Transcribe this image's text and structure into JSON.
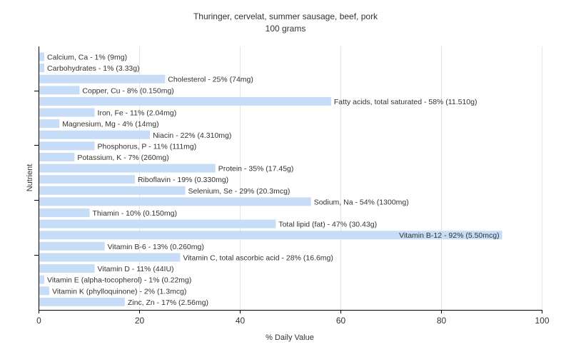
{
  "chart_data": {
    "type": "bar",
    "orientation": "horizontal",
    "title": "Thuringer, cervelat, summer sausage, beef, pork",
    "subtitle": "100 grams",
    "xlabel": "% Daily Value",
    "ylabel": "Nutrient",
    "xlim": [
      0,
      100
    ],
    "xticks": [
      0,
      20,
      40,
      60,
      80,
      100
    ],
    "grid": true,
    "bar_color": "#c6dcf7",
    "categories": [
      "Calcium, Ca",
      "Carbohydrates",
      "Cholesterol",
      "Copper, Cu",
      "Fatty acids, total saturated",
      "Iron, Fe",
      "Magnesium, Mg",
      "Niacin",
      "Phosphorus, P",
      "Potassium, K",
      "Protein",
      "Riboflavin",
      "Selenium, Se",
      "Sodium, Na",
      "Thiamin",
      "Total lipid (fat)",
      "Vitamin B-12",
      "Vitamin B-6",
      "Vitamin C, total ascorbic acid",
      "Vitamin D",
      "Vitamin E (alpha-tocopherol)",
      "Vitamin K (phylloquinone)",
      "Zinc, Zn"
    ],
    "values": [
      1,
      1,
      25,
      8,
      58,
      11,
      4,
      22,
      11,
      7,
      35,
      19,
      29,
      54,
      10,
      47,
      92,
      13,
      28,
      11,
      1,
      2,
      17
    ],
    "labels": [
      "Calcium, Ca - 1% (9mg)",
      "Carbohydrates - 1% (3.33g)",
      "Cholesterol - 25% (74mg)",
      "Copper, Cu - 8% (0.150mg)",
      "Fatty acids, total saturated - 58% (11.510g)",
      "Iron, Fe - 11% (2.04mg)",
      "Magnesium, Mg - 4% (14mg)",
      "Niacin - 22% (4.310mg)",
      "Phosphorus, P - 11% (111mg)",
      "Potassium, K - 7% (260mg)",
      "Protein - 35% (17.45g)",
      "Riboflavin - 19% (0.330mg)",
      "Selenium, Se - 29% (20.3mcg)",
      "Sodium, Na - 54% (1300mg)",
      "Thiamin - 10% (0.150mg)",
      "Total lipid (fat) - 47% (30.43g)",
      "Vitamin B-12 - 92% (5.50mcg)",
      "Vitamin B-6 - 13% (0.260mg)",
      "Vitamin C, total ascorbic acid - 28% (16.6mg)",
      "Vitamin D - 11% (44IU)",
      "Vitamin E (alpha-tocopherol) - 1% (0.22mg)",
      "Vitamin K (phylloquinone) - 2% (1.3mcg)",
      "Zinc, Zn - 17% (2.56mg)"
    ]
  }
}
